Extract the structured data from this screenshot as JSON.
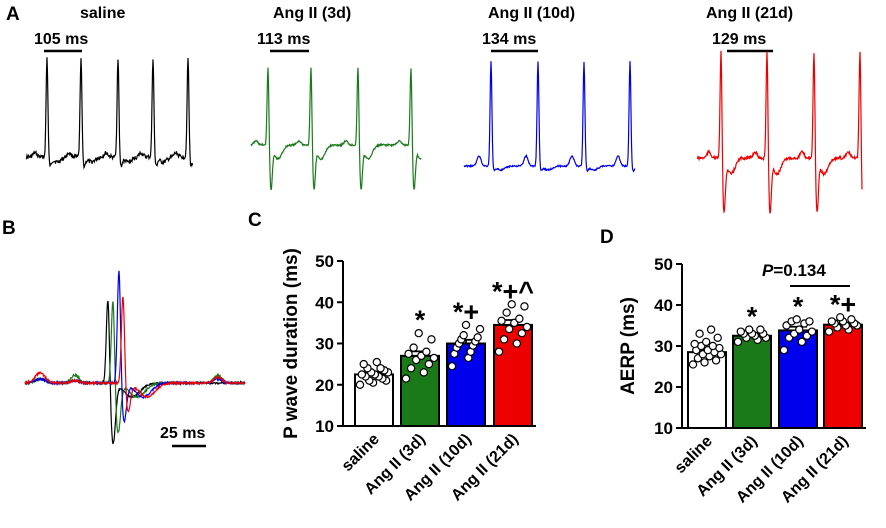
{
  "panels": {
    "A": {
      "label": "A",
      "traces": [
        {
          "title": "saline",
          "scale_label": "105 ms",
          "color": "#000000"
        },
        {
          "title": "Ang II (3d)",
          "scale_label": "113 ms",
          "color": "#1a7a1a"
        },
        {
          "title": "Ang II (10d)",
          "scale_label": "134 ms",
          "color": "#0000ee"
        },
        {
          "title": "Ang II (21d)",
          "scale_label": "129 ms",
          "color": "#ee0000"
        }
      ]
    },
    "B": {
      "label": "B",
      "scale_label": "25 ms",
      "colors": [
        "#000000",
        "#1a7a1a",
        "#0000ee",
        "#ee0000"
      ]
    }
  },
  "chart_data": [
    {
      "type": "bar",
      "panel": "C",
      "categories": [
        "saline",
        "Ang II (3d)",
        "Ang II (10d)",
        "Ang II (21d)"
      ],
      "values": [
        22.5,
        27.0,
        30.0,
        34.5
      ],
      "errors": [
        0.6,
        1.1,
        0.9,
        1.2
      ],
      "colors": [
        "#ffffff",
        "#1a7a1a",
        "#0000ee",
        "#ee0000"
      ],
      "significance": [
        "",
        "*",
        "*+",
        "*+^"
      ],
      "ylabel": "P wave duration (ms)",
      "ylim": [
        10,
        50
      ],
      "yticks": [
        10,
        20,
        30,
        40,
        50
      ],
      "points": [
        [
          20,
          20.5,
          21,
          21,
          21.5,
          22,
          22,
          22.5,
          22.5,
          23,
          23,
          23.5,
          24,
          24,
          25,
          25.5
        ],
        [
          21.5,
          23,
          24,
          25,
          26,
          26.5,
          27,
          27.5,
          28,
          29,
          31,
          32.5
        ],
        [
          24.5,
          26.5,
          27.5,
          28,
          29,
          29.5,
          30,
          30.5,
          31,
          31.5,
          32,
          33.5,
          34.5
        ],
        [
          28,
          30,
          31,
          32.5,
          33.5,
          34,
          35,
          35.5,
          36,
          37.5,
          39,
          39.5
        ]
      ]
    },
    {
      "type": "bar",
      "panel": "D",
      "categories": [
        "saline",
        "Ang II (3d)",
        "Ang II (10d)",
        "Ang II (21d)"
      ],
      "values": [
        28.5,
        32.5,
        33.8,
        35.2
      ],
      "errors": [
        0.6,
        0.4,
        0.9,
        0.3
      ],
      "colors": [
        "#ffffff",
        "#1a7a1a",
        "#0000ee",
        "#ee0000"
      ],
      "significance": [
        "",
        "*",
        "*",
        "*+"
      ],
      "annotation": {
        "italic": "P",
        "rest": "=0.134"
      },
      "ylabel": "AERP (ms)",
      "ylim": [
        10,
        50
      ],
      "yticks": [
        10,
        20,
        30,
        40,
        50
      ],
      "points": [
        [
          25.5,
          26,
          26.5,
          27,
          27.5,
          28,
          28,
          28.5,
          29,
          29,
          29.5,
          30,
          30,
          30.5,
          31,
          32,
          33,
          34
        ],
        [
          31,
          31.5,
          32,
          32,
          32.5,
          33,
          33,
          33,
          33.5,
          34,
          34
        ],
        [
          29,
          31,
          32,
          32.5,
          33,
          33.5,
          34,
          35,
          35.5,
          36,
          36,
          36.5
        ],
        [
          33.5,
          34,
          34.5,
          35,
          35,
          35.5,
          35.5,
          36,
          36,
          36.5,
          37
        ]
      ]
    }
  ]
}
